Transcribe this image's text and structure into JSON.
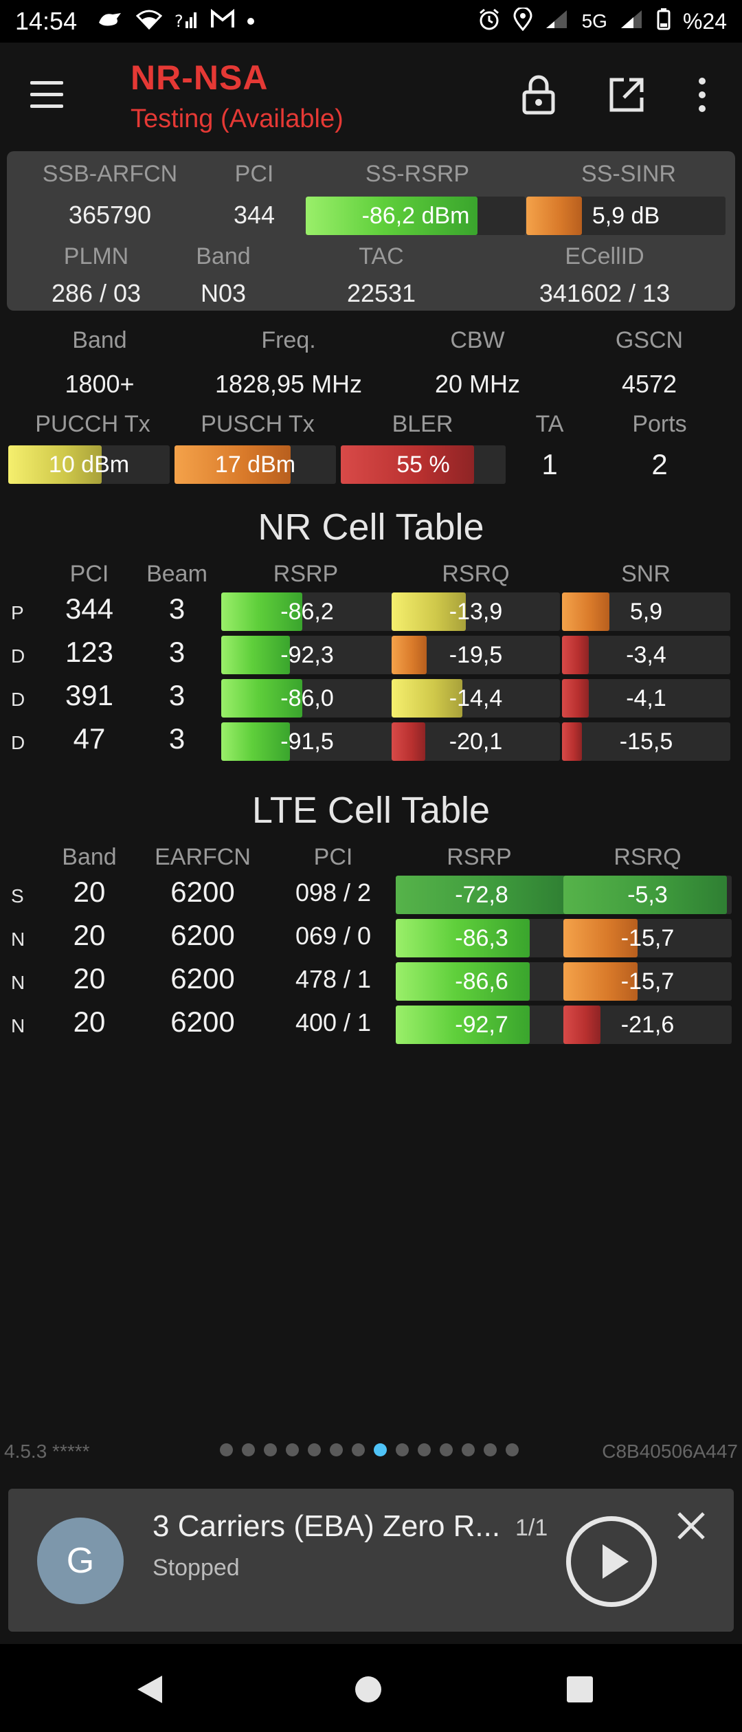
{
  "status": {
    "time": "14:54",
    "network": "5G",
    "battery": "%24"
  },
  "appbar": {
    "title": "NR-NSA",
    "subtitle": "Testing (Available)"
  },
  "serving": {
    "h_arfcn": "SSB-ARFCN",
    "h_pci": "PCI",
    "h_rsrp": "SS-RSRP",
    "h_sinr": "SS-SINR",
    "arfcn": "365790",
    "pci": "344",
    "rsrp": "-86,2 dBm",
    "sinr": "5,9 dB",
    "h_plmn": "PLMN",
    "h_band": "Band",
    "h_tac": "TAC",
    "h_ecellid": "ECellID",
    "plmn": "286 / 03",
    "band": "N03",
    "tac": "22531",
    "ecellid": "341602 / 13",
    "rsrp_level": 0.78,
    "sinr_level": 0.28
  },
  "info": {
    "h_band": "Band",
    "h_freq": "Freq.",
    "h_cbw": "CBW",
    "h_gscn": "GSCN",
    "band": "1800+",
    "freq": "1828,95 MHz",
    "cbw": "20 MHz",
    "gscn": "4572",
    "h_pucch": "PUCCH Tx",
    "h_pusch": "PUSCH Tx",
    "h_bler": "BLER",
    "h_ta": "TA",
    "h_ports": "Ports",
    "pucch": "10 dBm",
    "pusch": "17 dBm",
    "bler": "55 %",
    "ta": "1",
    "ports": "2",
    "pucch_level": 0.58,
    "pusch_level": 0.72,
    "bler_level": 0.81
  },
  "nr_table": {
    "title": "NR Cell Table",
    "headers": [
      "PCI",
      "Beam",
      "RSRP",
      "RSRQ",
      "SNR"
    ],
    "rows": [
      {
        "type": "P",
        "pci": "344",
        "beam": "3",
        "rsrp": "-86,2",
        "rsrq": "-13,9",
        "snr": "5,9"
      },
      {
        "type": "D",
        "pci": "123",
        "beam": "3",
        "rsrp": "-92,3",
        "rsrq": "-19,5",
        "snr": "-3,4"
      },
      {
        "type": "D",
        "pci": "391",
        "beam": "3",
        "rsrp": "-86,0",
        "rsrq": "-14,4",
        "snr": "-4,1"
      },
      {
        "type": "D",
        "pci": "47",
        "beam": "3",
        "rsrp": "-91,5",
        "rsrq": "-20,1",
        "snr": "-15,5"
      }
    ]
  },
  "lte_table": {
    "title": "LTE Cell Table",
    "headers": [
      "Band",
      "EARFCN",
      "PCI",
      "RSRP",
      "RSRQ"
    ],
    "rows": [
      {
        "type": "S",
        "band": "20",
        "earfcn": "6200",
        "pci": "098 / 2",
        "rsrp": "-72,8",
        "rsrq": "-5,3"
      },
      {
        "type": "N",
        "band": "20",
        "earfcn": "6200",
        "pci": "069 / 0",
        "rsrp": "-86,3",
        "rsrq": "-15,7"
      },
      {
        "type": "N",
        "band": "20",
        "earfcn": "6200",
        "pci": "478 / 1",
        "rsrp": "-86,6",
        "rsrq": "-15,7"
      },
      {
        "type": "N",
        "band": "20",
        "earfcn": "6200",
        "pci": "400 / 1",
        "rsrp": "-92,7",
        "rsrq": "-21,6"
      }
    ]
  },
  "footer": {
    "version": "4.5.3 *****",
    "device_id": "C8B40506A447",
    "page_count": 14,
    "active_page": 8
  },
  "player": {
    "avatar_letter": "G",
    "title": "3 Carriers (EBA) Zero R...",
    "count": "1/1",
    "status": "Stopped"
  },
  "colors": {
    "accent_red": "#e53935",
    "active_dot": "#4fc3f7"
  }
}
